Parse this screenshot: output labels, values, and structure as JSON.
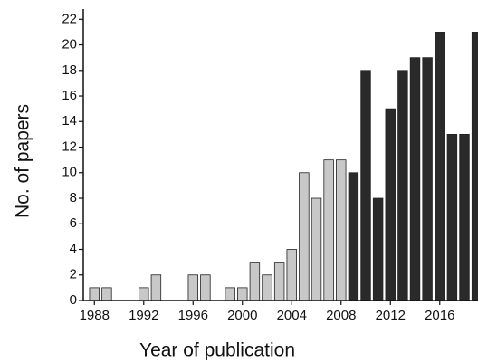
{
  "chart_data": {
    "type": "bar",
    "x_label": "Year of publication",
    "y_label": "No. of papers",
    "x": [
      1988,
      1989,
      1990,
      1991,
      1992,
      1993,
      1994,
      1995,
      1996,
      1997,
      1998,
      1999,
      2000,
      2001,
      2002,
      2003,
      2004,
      2005,
      2006,
      2007,
      2008,
      2009,
      2010,
      2011,
      2012,
      2013,
      2014,
      2015,
      2016,
      2017,
      2018,
      2019
    ],
    "values": [
      1,
      1,
      0,
      0,
      1,
      2,
      0,
      0,
      2,
      2,
      0,
      1,
      1,
      3,
      2,
      3,
      4,
      10,
      8,
      11,
      11,
      10,
      18,
      8,
      15,
      18,
      19,
      19,
      21,
      13,
      13,
      21
    ],
    "colors": [
      "#c8c8c8",
      "#c8c8c8",
      "#c8c8c8",
      "#c8c8c8",
      "#c8c8c8",
      "#c8c8c8",
      "#c8c8c8",
      "#c8c8c8",
      "#c8c8c8",
      "#c8c8c8",
      "#c8c8c8",
      "#c8c8c8",
      "#c8c8c8",
      "#c8c8c8",
      "#c8c8c8",
      "#c8c8c8",
      "#c8c8c8",
      "#c8c8c8",
      "#c8c8c8",
      "#c8c8c8",
      "#c8c8c8",
      "#2a2a2a",
      "#2a2a2a",
      "#2a2a2a",
      "#2a2a2a",
      "#2a2a2a",
      "#2a2a2a",
      "#2a2a2a",
      "#2a2a2a",
      "#2a2a2a",
      "#2a2a2a",
      "#2a2a2a"
    ],
    "xlim": [
      1987.1,
      2019.1
    ],
    "xticks": [
      1988,
      1992,
      1996,
      2000,
      2004,
      2008,
      2012,
      2016
    ],
    "ylim": [
      0,
      22.8
    ],
    "yticks": [
      0,
      2,
      4,
      6,
      8,
      10,
      12,
      14,
      16,
      18,
      20,
      22
    ]
  }
}
